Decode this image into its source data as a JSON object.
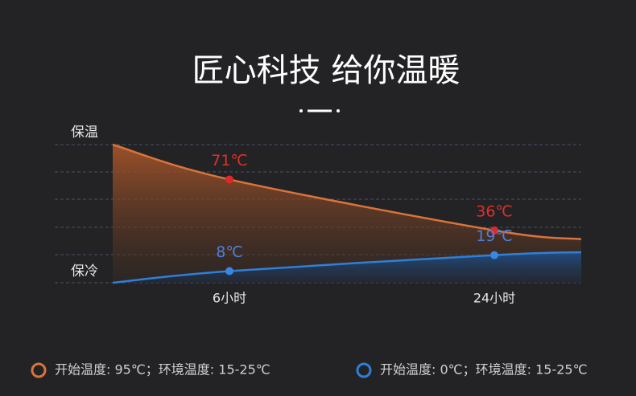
{
  "chart_data": {
    "type": "line",
    "title": "匠心科技 给你温暖",
    "y_top_label": "保温",
    "y_bottom_label": "保冷",
    "categories": [
      null,
      "6小时",
      "24小时",
      null
    ],
    "ylim": [
      0,
      95
    ],
    "series": [
      {
        "name": "开始温度: 95℃；环境温度: 15-25℃",
        "color": "#d9743a",
        "marker_color": "#e0282a",
        "label_color": "#e0302a",
        "values": [
          95,
          71,
          36,
          30
        ],
        "value_labels": [
          null,
          "71℃",
          "36℃",
          null
        ]
      },
      {
        "name": "开始温度: 0℃；环境温度: 15-25℃",
        "color": "#2f7fd8",
        "marker_color": "#3a86e0",
        "label_color": "#4f7fd8",
        "values": [
          0,
          8,
          19,
          21
        ],
        "value_labels": [
          null,
          "8℃",
          "19℃",
          null
        ]
      }
    ]
  }
}
